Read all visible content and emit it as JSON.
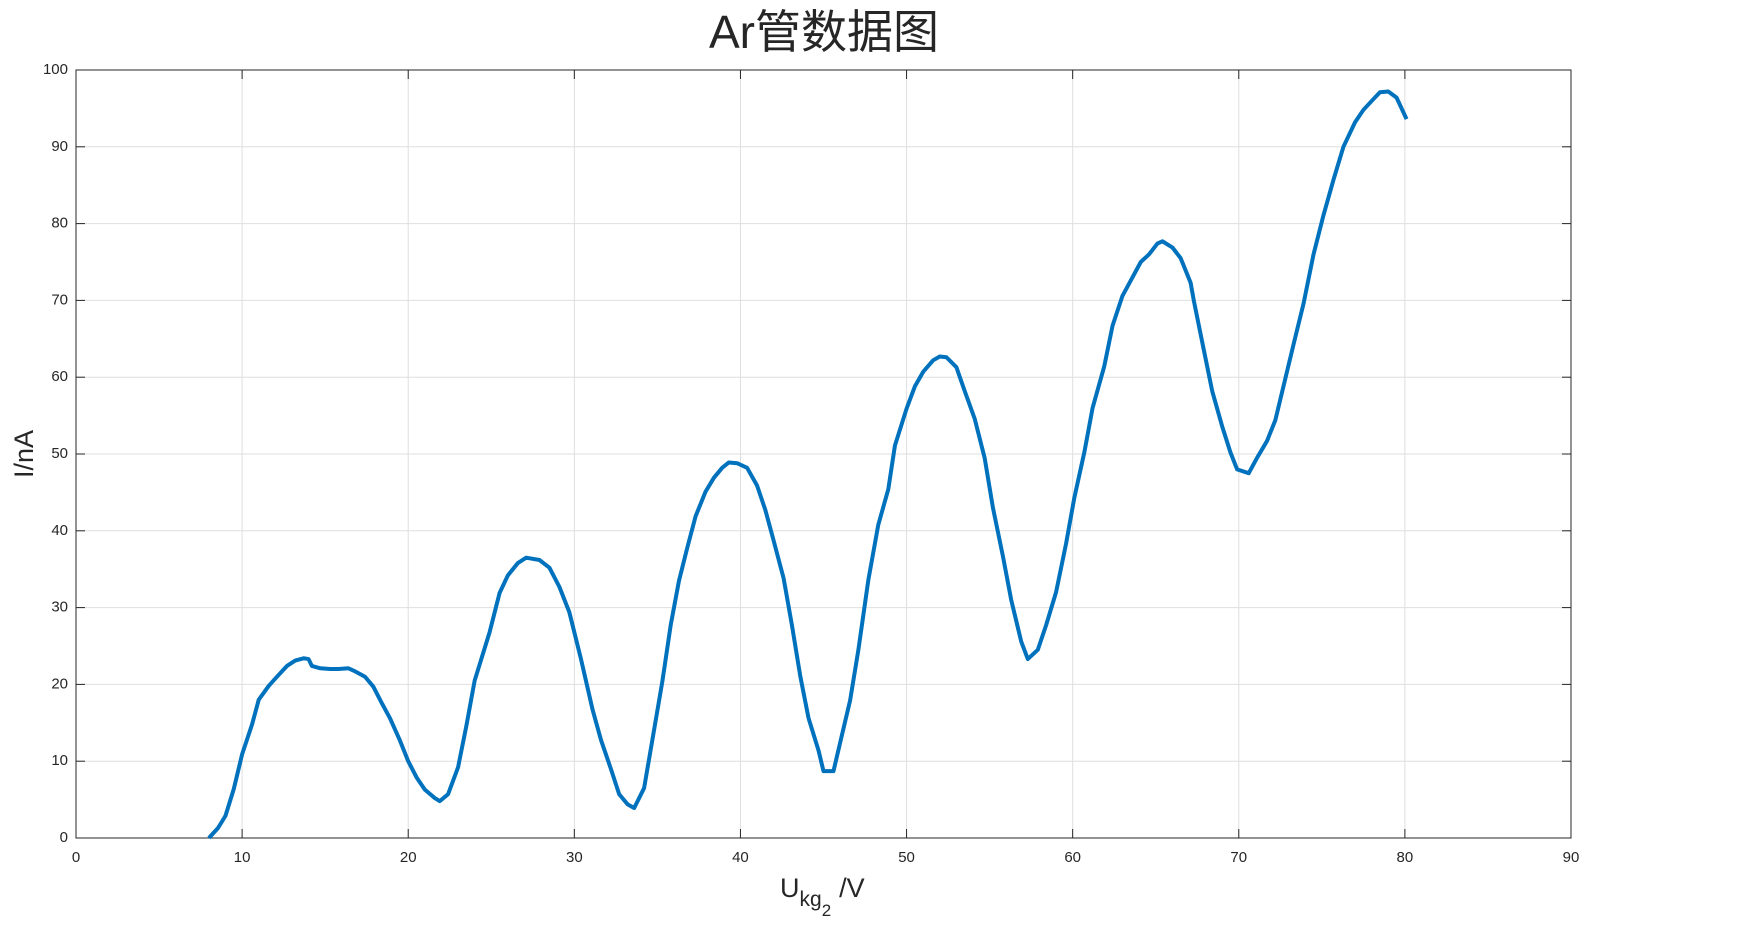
{
  "chart_data": {
    "type": "line",
    "title": "Ar管数据图",
    "xlabel": [
      "U",
      "kg",
      "2",
      "/V"
    ],
    "ylabel": "I/nA",
    "x": [
      8.0,
      8.55,
      9.0,
      9.5,
      10.0,
      10.6,
      11.0,
      11.6,
      12.1,
      12.7,
      13.2,
      13.7,
      14.0,
      14.2,
      14.7,
      15.3,
      15.8,
      16.4,
      16.8,
      17.4,
      17.9,
      18.4,
      18.9,
      19.5,
      20.0,
      20.5,
      21.0,
      21.6,
      21.9,
      22.4,
      23.0,
      23.5,
      24.0,
      24.9,
      25.5,
      26.0,
      26.6,
      27.1,
      27.9,
      28.5,
      29.1,
      29.7,
      30.4,
      31.1,
      31.6,
      32.2,
      32.7,
      33.2,
      33.6,
      34.2,
      34.7,
      35.3,
      35.8,
      36.3,
      36.8,
      37.3,
      37.9,
      38.4,
      38.9,
      39.3,
      39.8,
      40.4,
      41.0,
      41.5,
      42.0,
      42.6,
      43.1,
      43.6,
      44.1,
      44.7,
      45.0,
      45.6,
      46.0,
      46.6,
      47.1,
      47.7,
      48.3,
      48.9,
      49.3,
      50.0,
      50.5,
      51.0,
      51.6,
      52.0,
      52.4,
      53.0,
      53.5,
      54.1,
      54.7,
      55.2,
      55.8,
      56.3,
      56.9,
      57.3,
      57.9,
      58.4,
      59.0,
      59.6,
      60.1,
      60.7,
      61.2,
      61.9,
      62.4,
      63.0,
      63.5,
      64.1,
      64.6,
      65.1,
      65.4,
      66.0,
      66.5,
      67.1,
      67.3,
      67.9,
      68.4,
      69.0,
      69.5,
      69.9,
      70.6,
      71.1,
      71.7,
      72.2,
      72.7,
      73.3,
      73.9,
      74.5,
      75.1,
      75.7,
      76.3,
      77.0,
      77.5,
      78.1,
      78.5,
      79.0,
      79.5,
      80.1
    ],
    "series": [
      {
        "color": "#0072bd",
        "values": [
          0,
          1.3,
          2.9,
          6.4,
          10.9,
          14.8,
          18.0,
          19.8,
          21.0,
          22.4,
          23.1,
          23.4,
          23.3,
          22.4,
          22.1,
          22.0,
          22.0,
          22.1,
          21.7,
          21.0,
          19.7,
          17.6,
          15.6,
          12.7,
          10.0,
          7.9,
          6.3,
          5.2,
          4.8,
          5.7,
          9.2,
          14.6,
          20.5,
          26.8,
          31.9,
          34.2,
          35.8,
          36.5,
          36.2,
          35.2,
          32.7,
          29.4,
          23.3,
          16.7,
          12.8,
          9.0,
          5.7,
          4.4,
          3.9,
          6.5,
          12.8,
          20.4,
          27.7,
          33.5,
          37.8,
          41.9,
          45.1,
          46.9,
          48.2,
          48.9,
          48.8,
          48.2,
          45.9,
          42.7,
          38.7,
          33.8,
          27.7,
          21.1,
          15.6,
          11.4,
          8.7,
          8.7,
          12.4,
          17.9,
          24.5,
          33.6,
          40.8,
          45.4,
          51.1,
          55.9,
          58.8,
          60.7,
          62.2,
          62.7,
          62.6,
          61.3,
          58.2,
          54.6,
          49.5,
          43.0,
          36.7,
          31.0,
          25.6,
          23.3,
          24.5,
          27.7,
          32.0,
          38.3,
          44.3,
          50.2,
          56.0,
          61.4,
          66.7,
          70.6,
          72.6,
          75.0,
          76.0,
          77.4,
          77.7,
          76.9,
          75.5,
          72.3,
          69.9,
          63.5,
          58.2,
          53.6,
          50.2,
          48.0,
          47.5,
          49.5,
          51.7,
          54.4,
          58.9,
          64.3,
          69.6,
          76.0,
          81.1,
          85.7,
          90.0,
          93.2,
          94.8,
          96.2,
          97.1,
          97.2,
          96.4,
          93.6
        ]
      }
    ],
    "xlim": [
      0,
      90
    ],
    "xticks": [
      0,
      10,
      20,
      30,
      40,
      50,
      60,
      70,
      80,
      90
    ],
    "ylim": [
      0,
      100
    ],
    "yticks": [
      0,
      10,
      20,
      30,
      40,
      50,
      60,
      70,
      80,
      90,
      100
    ],
    "grid": true
  }
}
